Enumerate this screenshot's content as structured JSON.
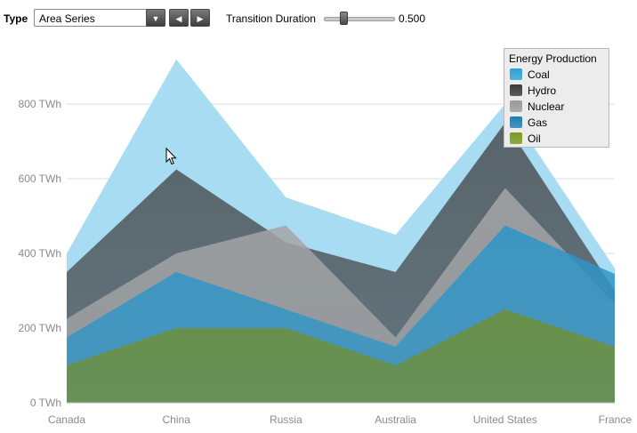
{
  "toolbar": {
    "type_label": "Type",
    "type_value": "Area Series",
    "dropdown_icon": "chevron-down-icon",
    "prev_icon": "chevron-left-icon",
    "next_icon": "chevron-right-icon",
    "transition_label": "Transition Duration",
    "transition_value": "0.500",
    "transition_fraction": 0.25
  },
  "chart_data": {
    "type": "area",
    "categories": [
      "Canada",
      "China",
      "Russia",
      "Australia",
      "United States",
      "France"
    ],
    "ylim": [
      0,
      1000
    ],
    "y_ticks": [
      0,
      200,
      400,
      600,
      800
    ],
    "y_tick_labels": [
      "0 TWh",
      "200 TWh",
      "400 TWh",
      "600 TWh",
      "800 TWh"
    ],
    "grid": true,
    "legend_position": "top-right",
    "legend_title": "Energy Production",
    "series": [
      {
        "name": "Coal",
        "color": "#a8dcf2",
        "values": [
          400,
          920,
          550,
          450,
          800,
          360
        ]
      },
      {
        "name": "Hydro",
        "color": "#4d5357",
        "values": [
          350,
          625,
          430,
          350,
          750,
          300
        ]
      },
      {
        "name": "Nuclear",
        "color": "#a3a5a7",
        "values": [
          225,
          400,
          475,
          175,
          575,
          265
        ]
      },
      {
        "name": "Gas",
        "color": "#2f95c7",
        "values": [
          175,
          350,
          250,
          150,
          475,
          345
        ]
      },
      {
        "name": "Oil",
        "color": "#6f8f38",
        "values": [
          100,
          200,
          200,
          100,
          250,
          150
        ]
      }
    ],
    "legend_swatches": [
      "#2ea1d8",
      "#3a3a3a",
      "#9a9a9a",
      "#1e7fb6",
      "#7a9a1e"
    ]
  }
}
